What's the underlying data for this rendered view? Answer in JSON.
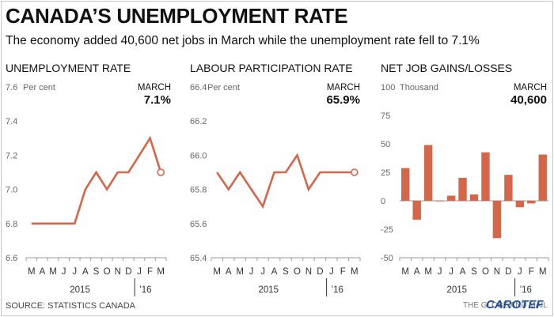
{
  "header": {
    "title": "CANADA’S UNEMPLOYMENT RATE",
    "subtitle": "The economy added 40,600 net jobs in March while the unemployment rate fell to 7.1%"
  },
  "footer": {
    "source": "SOURCE: STATISTICS CANADA",
    "credit": "THE GLOBE AND MAIL",
    "logo": "CAROTEF"
  },
  "colors": {
    "series": "#d4664a",
    "axis": "#999999",
    "tick_label": "#666666"
  },
  "chart_data": [
    {
      "type": "line",
      "title": "UNEMPLOYMENT RATE",
      "unit_label": "Per cent",
      "callout_label": "MARCH",
      "callout_value": "7.1%",
      "ylim": [
        6.6,
        7.6
      ],
      "yticks": [
        "6.6",
        "6.8",
        "7.0",
        "7.2",
        "7.4",
        "7.6"
      ],
      "x": [
        "M",
        "A",
        "M",
        "J",
        "J",
        "A",
        "S",
        "O",
        "N",
        "D",
        "J",
        "F",
        "M"
      ],
      "values": [
        6.8,
        6.8,
        6.8,
        6.8,
        6.8,
        7.0,
        7.1,
        7.0,
        7.1,
        7.1,
        7.2,
        7.3,
        7.1
      ],
      "year_labels": [
        "2015",
        "’16"
      ],
      "grid": false
    },
    {
      "type": "line",
      "title": "LABOUR PARTICIPATION RATE",
      "unit_label": "Per cent",
      "callout_label": "MARCH",
      "callout_value": "65.9%",
      "ylim": [
        65.4,
        66.4
      ],
      "yticks": [
        "65.4",
        "65.6",
        "65.8",
        "66.0",
        "66.2",
        "66.4"
      ],
      "x": [
        "M",
        "A",
        "M",
        "J",
        "J",
        "A",
        "S",
        "O",
        "N",
        "D",
        "J",
        "F",
        "M"
      ],
      "values": [
        65.9,
        65.8,
        65.9,
        65.8,
        65.7,
        65.9,
        65.9,
        66.0,
        65.8,
        65.9,
        65.9,
        65.9,
        65.9
      ],
      "year_labels": [
        "2015",
        "’16"
      ],
      "grid": false
    },
    {
      "type": "bar",
      "title": "NET JOB GAINS/LOSSES",
      "unit_label": "Thousand",
      "callout_label": "MARCH",
      "callout_value": "40,600",
      "ylim": [
        -50,
        100
      ],
      "yticks": [
        "-50",
        "-25",
        "0",
        "25",
        "50",
        "75",
        "100"
      ],
      "x": [
        "M",
        "A",
        "M",
        "J",
        "J",
        "A",
        "S",
        "O",
        "N",
        "D",
        "J",
        "F",
        "M"
      ],
      "values": [
        28.7,
        -16.6,
        49,
        0.2,
        4.5,
        20.2,
        5.6,
        42.6,
        -32.8,
        22.8,
        -5.7,
        -2.3,
        40.6
      ],
      "year_labels": [
        "2015",
        "’16"
      ],
      "grid": false
    }
  ]
}
